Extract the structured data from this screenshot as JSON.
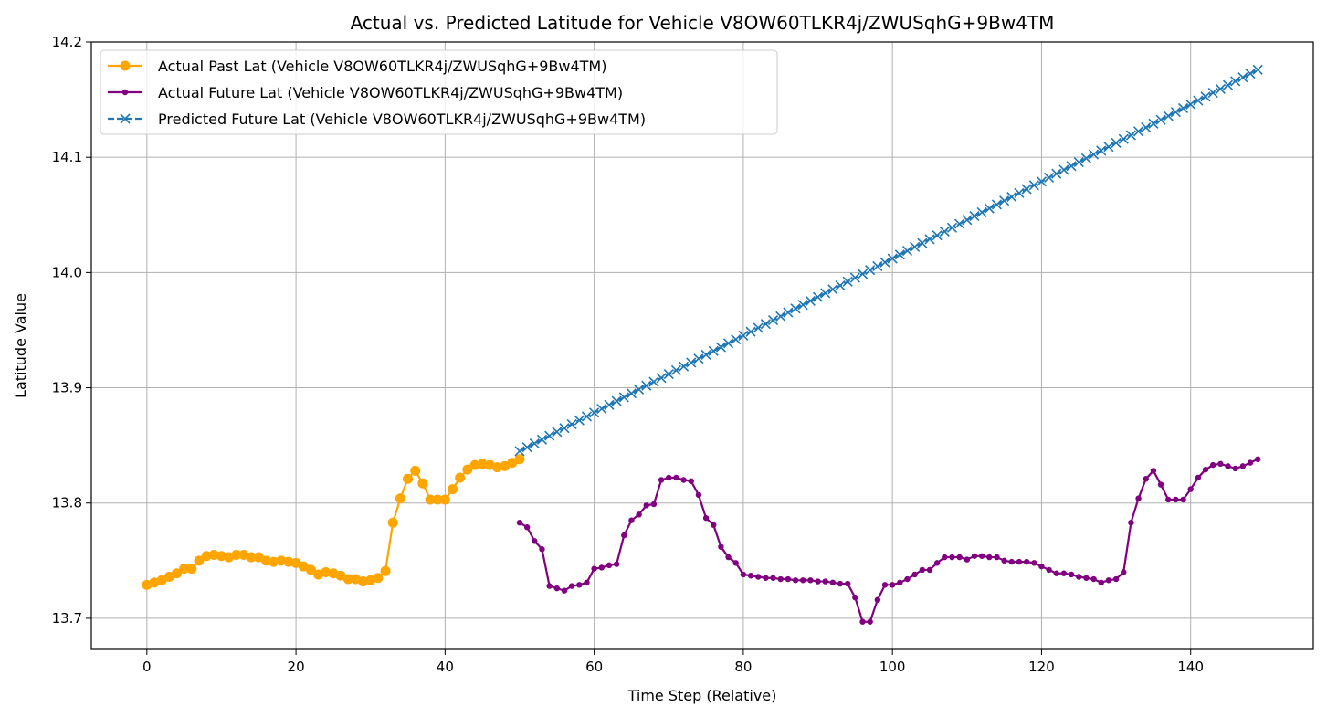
{
  "chart_data": {
    "type": "line",
    "title": "Actual vs. Predicted Latitude for Vehicle V8OW60TLKR4j/ZWUSqhG+9Bw4TM",
    "xlabel": "Time Step (Relative)",
    "ylabel": "Latitude Value",
    "xlim": [
      -7.45,
      156.45
    ],
    "ylim": [
      13.673,
      14.2
    ],
    "x_ticks": [
      0,
      20,
      40,
      60,
      80,
      100,
      120,
      140
    ],
    "y_ticks": [
      13.7,
      13.8,
      13.9,
      14.0,
      14.1,
      14.2
    ],
    "x_tick_labels": [
      "0",
      "20",
      "40",
      "60",
      "80",
      "100",
      "120",
      "140"
    ],
    "y_tick_labels": [
      "13.7",
      "13.8",
      "13.9",
      "14.0",
      "14.1",
      "14.2"
    ],
    "grid": true,
    "legend_position": "upper-left",
    "series": [
      {
        "name": "Actual Past Lat (Vehicle V8OW60TLKR4j/ZWUSqhG+9Bw4TM)",
        "color": "#ffa500",
        "marker": "circle",
        "linestyle": "solid",
        "x_start": 0,
        "values": [
          13.729,
          13.731,
          13.733,
          13.736,
          13.739,
          13.743,
          13.743,
          13.75,
          13.754,
          13.755,
          13.754,
          13.753,
          13.755,
          13.755,
          13.753,
          13.753,
          13.75,
          13.749,
          13.75,
          13.749,
          13.748,
          13.745,
          13.742,
          13.738,
          13.74,
          13.739,
          13.737,
          13.734,
          13.734,
          13.732,
          13.733,
          13.735,
          13.741,
          13.783,
          13.804,
          13.821,
          13.828,
          13.817,
          13.803,
          13.803,
          13.803,
          13.812,
          13.822,
          13.829,
          13.833,
          13.834,
          13.833,
          13.831,
          13.832,
          13.835,
          13.838
        ]
      },
      {
        "name": "Actual Future Lat (Vehicle V8OW60TLKR4j/ZWUSqhG+9Bw4TM)",
        "color": "#800080",
        "marker": "small-circle",
        "linestyle": "solid",
        "x_start": 50,
        "values": [
          13.783,
          13.779,
          13.767,
          13.76,
          13.728,
          13.726,
          13.724,
          13.728,
          13.729,
          13.731,
          13.743,
          13.744,
          13.746,
          13.747,
          13.772,
          13.785,
          13.79,
          13.798,
          13.799,
          13.82,
          13.822,
          13.822,
          13.82,
          13.819,
          13.807,
          13.787,
          13.781,
          13.762,
          13.753,
          13.748,
          13.738,
          13.737,
          13.736,
          13.735,
          13.735,
          13.734,
          13.734,
          13.733,
          13.733,
          13.733,
          13.732,
          13.732,
          13.731,
          13.73,
          13.73,
          13.718,
          13.697,
          13.697,
          13.716,
          13.729,
          13.729,
          13.731,
          13.734,
          13.738,
          13.742,
          13.742,
          13.748,
          13.753,
          13.753,
          13.753,
          13.751,
          13.754,
          13.754,
          13.753,
          13.753,
          13.75,
          13.749,
          13.749,
          13.749,
          13.748,
          13.745,
          13.742,
          13.739,
          13.739,
          13.738,
          13.736,
          13.735,
          13.734,
          13.731,
          13.733,
          13.734,
          13.74,
          13.783,
          13.804,
          13.821,
          13.828,
          13.816,
          13.803,
          13.803,
          13.803,
          13.812,
          13.822,
          13.829,
          13.833,
          13.834,
          13.832,
          13.83,
          13.832,
          13.835,
          13.838
        ]
      },
      {
        "name": "Predicted Future Lat (Vehicle V8OW60TLKR4j/ZWUSqhG+9Bw4TM)",
        "color": "#1f77b4",
        "marker": "x",
        "linestyle": "dashed",
        "x_start": 50,
        "x_end": 149,
        "y_start": 13.845,
        "y_end": 14.176,
        "n_points": 100
      }
    ]
  }
}
